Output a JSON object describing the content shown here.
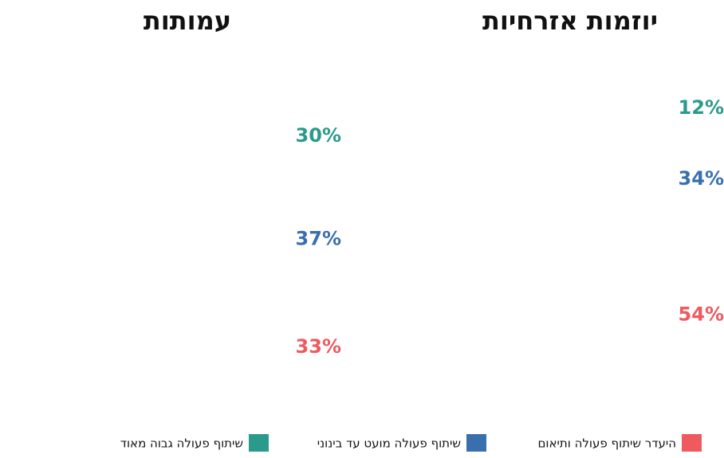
{
  "legend": [
    {
      "name": "היעדר שיתוף פעולה ותיאום",
      "color": "#ef5a5f"
    },
    {
      "name": "שיתוף פעולה מועט עד בינוני",
      "color": "#3a6fae"
    },
    {
      "name": "שיתוף פעולה גבוה מאוד",
      "color": "#2a9a8a"
    }
  ],
  "chart_data": [
    {
      "type": "stacked-icon",
      "title": "יוזמות אזרחיות",
      "values": [
        54,
        34,
        12
      ],
      "value_labels": [
        "54%",
        "34%",
        "12%"
      ]
    },
    {
      "type": "stacked-icon",
      "title": "עמותות",
      "values": [
        33,
        37,
        30
      ],
      "value_labels": [
        "33%",
        "37%",
        "30%"
      ]
    }
  ]
}
